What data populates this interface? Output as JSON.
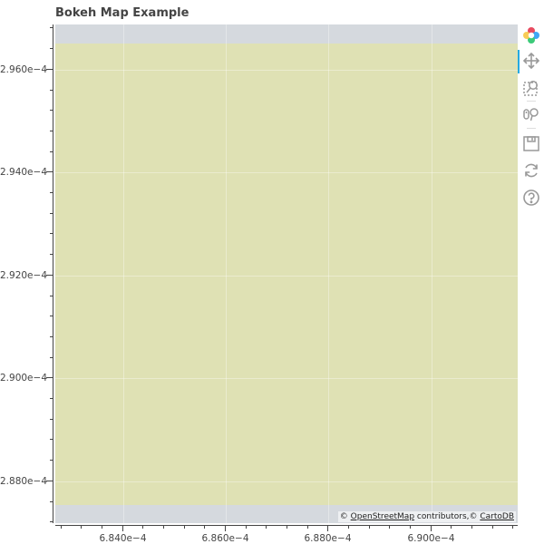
{
  "title": "Bokeh Map Example",
  "attribution": {
    "prefix": "© ",
    "osm_link": "OpenStreetMap",
    "middle": " contributors,© ",
    "carto_link": "CartoDB"
  },
  "y_axis": {
    "ticks": [
      {
        "value": 0.000296,
        "label": "2.960e−4"
      },
      {
        "value": 0.000294,
        "label": "2.940e−4"
      },
      {
        "value": 0.000292,
        "label": "2.920e−4"
      },
      {
        "value": 0.00029,
        "label": "2.900e−4"
      },
      {
        "value": 0.000288,
        "label": "2.880e−4"
      }
    ],
    "range": [
      0.00028717,
      0.00029686
    ]
  },
  "x_axis": {
    "ticks": [
      {
        "value": 0.000684,
        "label": "6.840e−4"
      },
      {
        "value": 0.000686,
        "label": "6.860e−4"
      },
      {
        "value": 0.000688,
        "label": "6.880e−4"
      },
      {
        "value": 0.00069,
        "label": "6.900e−4"
      }
    ],
    "range": [
      0.0006827,
      0.0006917
    ]
  },
  "colors": {
    "tile": "#dfe1b4",
    "background": "#d5d9de",
    "tool_active": "#26aae1"
  },
  "toolbar": {
    "tools": [
      {
        "name": "bokeh-logo-icon",
        "interactable": true
      },
      {
        "name": "pan-tool-icon",
        "interactable": true,
        "active": true
      },
      {
        "name": "box-zoom-tool-icon",
        "interactable": true
      },
      {
        "name": "wheel-zoom-tool-icon",
        "interactable": true
      },
      {
        "name": "save-tool-icon",
        "interactable": true
      },
      {
        "name": "reset-tool-icon",
        "interactable": true
      },
      {
        "name": "help-tool-icon",
        "interactable": true
      }
    ]
  }
}
